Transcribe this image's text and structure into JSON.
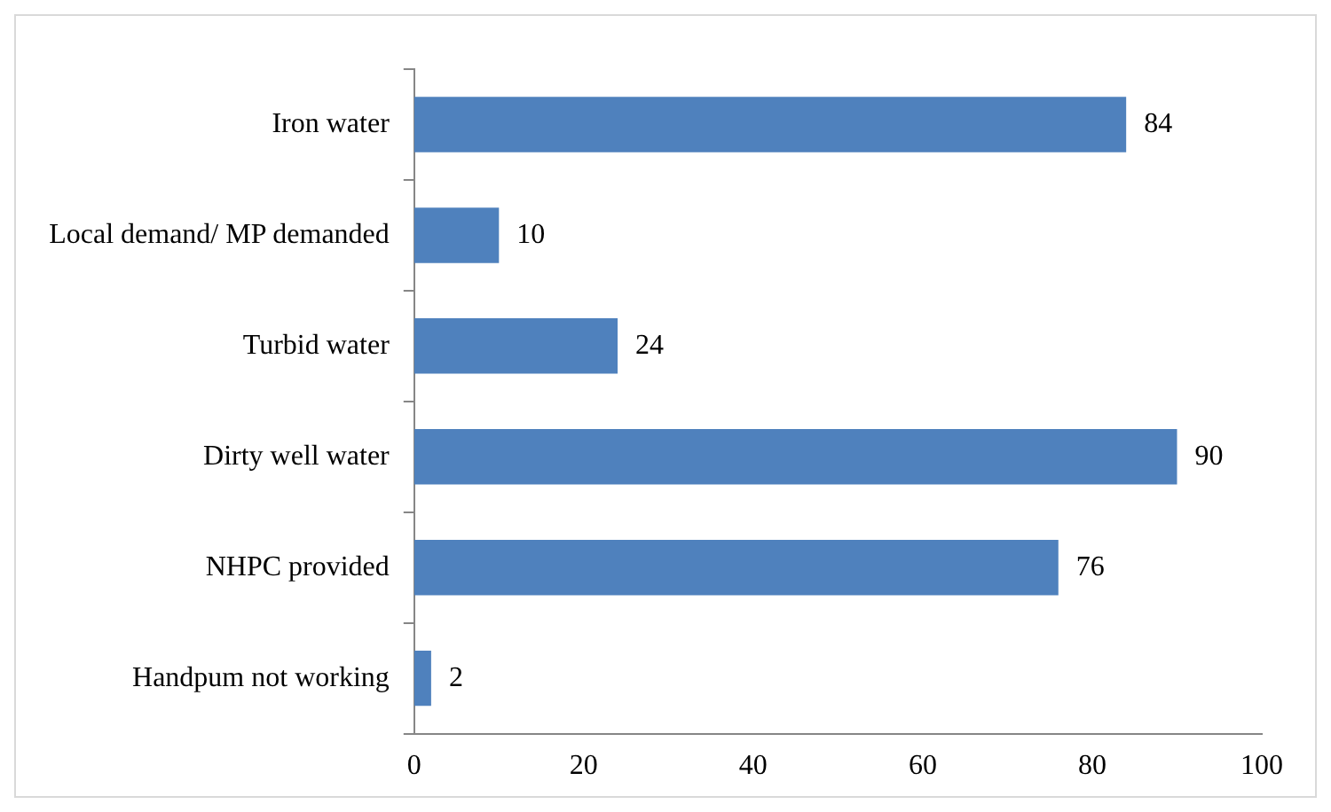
{
  "chart_data": {
    "type": "bar",
    "orientation": "horizontal",
    "categories": [
      "Iron water",
      "Local demand/ MP demanded",
      "Turbid water",
      "Dirty well water",
      "NHPC provided",
      "Handpum not working"
    ],
    "values": [
      84,
      10,
      24,
      90,
      76,
      2
    ],
    "color": "#4f81bd",
    "xlim": [
      0,
      100
    ],
    "xticks": [
      0,
      20,
      40,
      60,
      80,
      100
    ],
    "grid": false,
    "legend": false,
    "data_labels": true
  }
}
